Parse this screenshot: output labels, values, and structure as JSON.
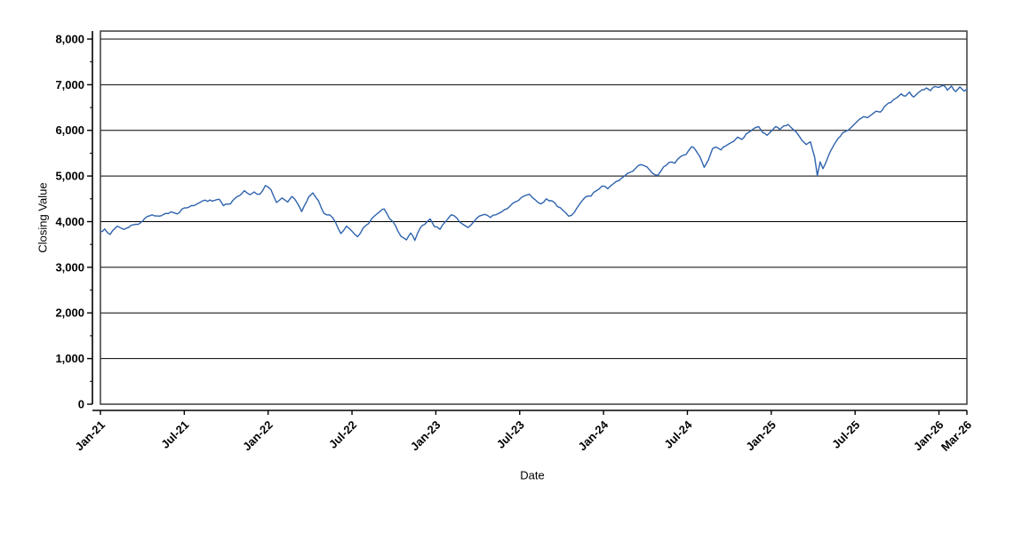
{
  "chart_data": {
    "type": "line",
    "title": "",
    "xlabel": "Date",
    "ylabel": "Closing Value",
    "x_unit": "months since Jan-2021",
    "x_range_months": [
      0,
      62
    ],
    "ylim": [
      0,
      8175
    ],
    "grid": "horizontal-major",
    "legend": "none",
    "y_ticks": [
      {
        "value": 0,
        "label": "0"
      },
      {
        "value": 1000,
        "label": "1,000"
      },
      {
        "value": 2000,
        "label": "2,000"
      },
      {
        "value": 3000,
        "label": "3,000"
      },
      {
        "value": 4000,
        "label": "4,000"
      },
      {
        "value": 5000,
        "label": "5,000"
      },
      {
        "value": 6000,
        "label": "6,000"
      },
      {
        "value": 7000,
        "label": "7,000"
      },
      {
        "value": 8000,
        "label": "8,000"
      }
    ],
    "y_minor_step": 500,
    "x_ticks": [
      {
        "t": 0,
        "label": "Jan-21"
      },
      {
        "t": 6,
        "label": "Jul-21"
      },
      {
        "t": 12,
        "label": "Jan-22"
      },
      {
        "t": 18,
        "label": "Jul-22"
      },
      {
        "t": 24,
        "label": "Jan-23"
      },
      {
        "t": 30,
        "label": "Jul-23"
      },
      {
        "t": 36,
        "label": "Jan-24"
      },
      {
        "t": 42,
        "label": "Jul-24"
      },
      {
        "t": 48,
        "label": "Jan-25"
      },
      {
        "t": 54,
        "label": "Jul-25"
      },
      {
        "t": 60,
        "label": "Jan-26"
      },
      {
        "t": 62,
        "label": "Mar-26"
      }
    ],
    "series": [
      {
        "name": "Closing Value",
        "color": "#2f63ad",
        "points": [
          [
            0.0,
            3780
          ],
          [
            0.3,
            3840
          ],
          [
            0.7,
            3720
          ],
          [
            1.2,
            3900
          ],
          [
            1.7,
            3830
          ],
          [
            2.2,
            3920
          ],
          [
            2.7,
            3940
          ],
          [
            3.2,
            4080
          ],
          [
            3.7,
            4150
          ],
          [
            4.2,
            4120
          ],
          [
            4.7,
            4180
          ],
          [
            5.2,
            4200
          ],
          [
            5.5,
            4170
          ],
          [
            6.0,
            4300
          ],
          [
            6.5,
            4350
          ],
          [
            7.0,
            4400
          ],
          [
            7.5,
            4470
          ],
          [
            8.0,
            4450
          ],
          [
            8.5,
            4490
          ],
          [
            8.8,
            4350
          ],
          [
            9.3,
            4390
          ],
          [
            9.8,
            4550
          ],
          [
            10.3,
            4680
          ],
          [
            10.7,
            4590
          ],
          [
            11.0,
            4650
          ],
          [
            11.4,
            4600
          ],
          [
            11.8,
            4790
          ],
          [
            12.2,
            4700
          ],
          [
            12.6,
            4420
          ],
          [
            13.0,
            4520
          ],
          [
            13.4,
            4430
          ],
          [
            13.7,
            4550
          ],
          [
            14.1,
            4400
          ],
          [
            14.4,
            4220
          ],
          [
            14.9,
            4540
          ],
          [
            15.2,
            4630
          ],
          [
            15.6,
            4460
          ],
          [
            16.0,
            4180
          ],
          [
            16.4,
            4150
          ],
          [
            16.8,
            4000
          ],
          [
            17.2,
            3740
          ],
          [
            17.6,
            3900
          ],
          [
            18.0,
            3790
          ],
          [
            18.4,
            3670
          ],
          [
            18.8,
            3860
          ],
          [
            19.2,
            3960
          ],
          [
            19.6,
            4120
          ],
          [
            20.0,
            4220
          ],
          [
            20.3,
            4280
          ],
          [
            20.7,
            4060
          ],
          [
            21.1,
            3920
          ],
          [
            21.5,
            3680
          ],
          [
            21.9,
            3600
          ],
          [
            22.2,
            3750
          ],
          [
            22.5,
            3590
          ],
          [
            22.9,
            3870
          ],
          [
            23.2,
            3940
          ],
          [
            23.6,
            4060
          ],
          [
            23.9,
            3890
          ],
          [
            24.3,
            3830
          ],
          [
            24.7,
            4000
          ],
          [
            25.1,
            4150
          ],
          [
            25.5,
            4080
          ],
          [
            25.9,
            3950
          ],
          [
            26.3,
            3870
          ],
          [
            26.7,
            3990
          ],
          [
            27.1,
            4120
          ],
          [
            27.5,
            4160
          ],
          [
            27.9,
            4090
          ],
          [
            28.3,
            4150
          ],
          [
            28.7,
            4210
          ],
          [
            29.1,
            4280
          ],
          [
            29.5,
            4400
          ],
          [
            29.9,
            4460
          ],
          [
            30.3,
            4560
          ],
          [
            30.7,
            4600
          ],
          [
            31.1,
            4480
          ],
          [
            31.5,
            4390
          ],
          [
            31.9,
            4500
          ],
          [
            32.3,
            4460
          ],
          [
            32.7,
            4330
          ],
          [
            33.1,
            4250
          ],
          [
            33.5,
            4120
          ],
          [
            33.9,
            4200
          ],
          [
            34.3,
            4390
          ],
          [
            34.7,
            4540
          ],
          [
            35.1,
            4560
          ],
          [
            35.5,
            4680
          ],
          [
            35.9,
            4780
          ],
          [
            36.3,
            4720
          ],
          [
            36.7,
            4830
          ],
          [
            37.1,
            4900
          ],
          [
            37.5,
            5000
          ],
          [
            37.9,
            5080
          ],
          [
            38.3,
            5170
          ],
          [
            38.7,
            5250
          ],
          [
            39.1,
            5200
          ],
          [
            39.5,
            5060
          ],
          [
            39.9,
            5020
          ],
          [
            40.3,
            5200
          ],
          [
            40.7,
            5300
          ],
          [
            41.1,
            5280
          ],
          [
            41.5,
            5420
          ],
          [
            41.9,
            5470
          ],
          [
            42.3,
            5640
          ],
          [
            42.6,
            5560
          ],
          [
            42.9,
            5420
          ],
          [
            43.2,
            5190
          ],
          [
            43.5,
            5350
          ],
          [
            43.8,
            5600
          ],
          [
            44.1,
            5630
          ],
          [
            44.4,
            5570
          ],
          [
            44.7,
            5650
          ],
          [
            45.0,
            5710
          ],
          [
            45.3,
            5760
          ],
          [
            45.6,
            5850
          ],
          [
            45.9,
            5800
          ],
          [
            46.2,
            5920
          ],
          [
            46.5,
            5980
          ],
          [
            46.8,
            6050
          ],
          [
            47.1,
            6080
          ],
          [
            47.4,
            5950
          ],
          [
            47.7,
            5890
          ],
          [
            48.0,
            5980
          ],
          [
            48.3,
            6080
          ],
          [
            48.6,
            6020
          ],
          [
            48.9,
            6100
          ],
          [
            49.2,
            6130
          ],
          [
            49.5,
            6040
          ],
          [
            49.8,
            5960
          ],
          [
            50.2,
            5780
          ],
          [
            50.5,
            5690
          ],
          [
            50.8,
            5750
          ],
          [
            51.1,
            5420
          ],
          [
            51.3,
            5010
          ],
          [
            51.5,
            5310
          ],
          [
            51.7,
            5160
          ],
          [
            51.9,
            5290
          ],
          [
            52.2,
            5520
          ],
          [
            52.5,
            5690
          ],
          [
            52.8,
            5830
          ],
          [
            53.1,
            5940
          ],
          [
            53.4,
            5990
          ],
          [
            53.7,
            6060
          ],
          [
            54.0,
            6150
          ],
          [
            54.3,
            6240
          ],
          [
            54.6,
            6300
          ],
          [
            54.9,
            6280
          ],
          [
            55.2,
            6350
          ],
          [
            55.5,
            6420
          ],
          [
            55.8,
            6400
          ],
          [
            56.1,
            6520
          ],
          [
            56.4,
            6600
          ],
          [
            56.7,
            6660
          ],
          [
            57.0,
            6720
          ],
          [
            57.3,
            6800
          ],
          [
            57.6,
            6750
          ],
          [
            57.9,
            6840
          ],
          [
            58.2,
            6730
          ],
          [
            58.5,
            6820
          ],
          [
            58.8,
            6890
          ],
          [
            59.1,
            6930
          ],
          [
            59.4,
            6870
          ],
          [
            59.7,
            6960
          ],
          [
            60.0,
            6940
          ],
          [
            60.3,
            6990
          ],
          [
            60.6,
            6880
          ],
          [
            60.9,
            6970
          ],
          [
            61.2,
            6850
          ],
          [
            61.5,
            6950
          ],
          [
            61.8,
            6860
          ],
          [
            62.0,
            6900
          ]
        ]
      }
    ]
  },
  "style": {
    "background": "#ffffff",
    "grid_color": "#000000",
    "frame_color": "#3c3c3c",
    "axis_color": "#000000",
    "tick_label_color": "#000000"
  }
}
